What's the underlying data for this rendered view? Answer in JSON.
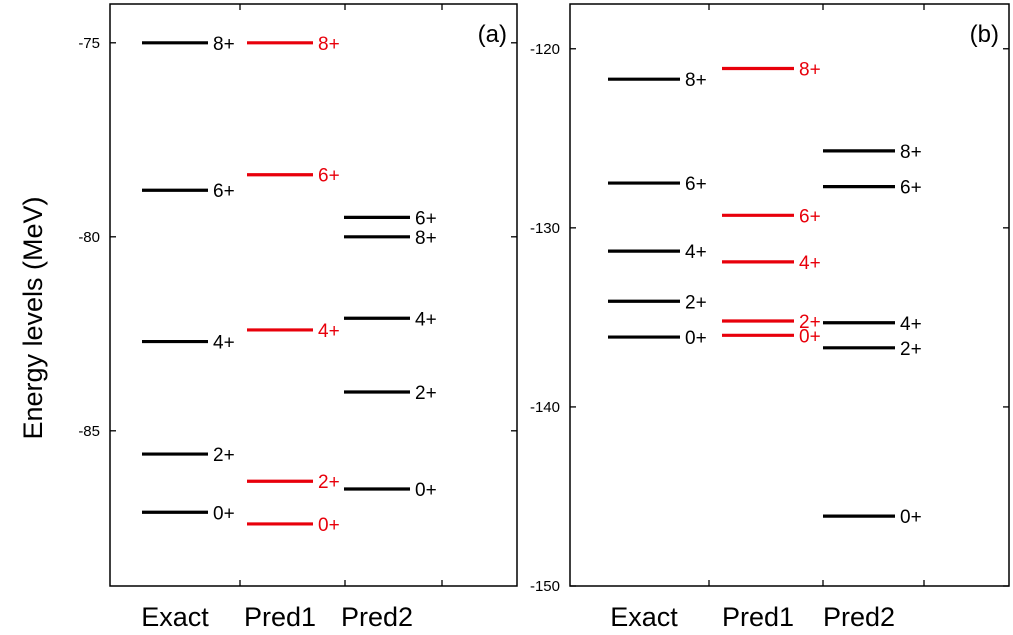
{
  "colors": {
    "exact": "#000000",
    "pred1": "#e8000b",
    "pred2": "#000000",
    "axis": "#000000"
  },
  "chart_data": [
    {
      "type": "scatter",
      "panel_label": "(a)",
      "ylabel": "Energy levels (MeV)",
      "categories": [
        "Exact",
        "Pred1",
        "Pred2"
      ],
      "ylim": [
        -89,
        -74
      ],
      "yticks": [
        -75,
        -80,
        -85
      ],
      "series": [
        {
          "name": "Exact",
          "levels": [
            {
              "label": "8+",
              "value": -75.0
            },
            {
              "label": "6+",
              "value": -78.8
            },
            {
              "label": "4+",
              "value": -82.7
            },
            {
              "label": "2+",
              "value": -85.6
            },
            {
              "label": "0+",
              "value": -87.1
            }
          ]
        },
        {
          "name": "Pred1",
          "levels": [
            {
              "label": "8+",
              "value": -75.0
            },
            {
              "label": "6+",
              "value": -78.4
            },
            {
              "label": "4+",
              "value": -82.4
            },
            {
              "label": "2+",
              "value": -86.3
            },
            {
              "label": "0+",
              "value": -87.4
            }
          ]
        },
        {
          "name": "Pred2",
          "levels": [
            {
              "label": "6+",
              "value": -79.5
            },
            {
              "label": "8+",
              "value": -80.0
            },
            {
              "label": "4+",
              "value": -82.1
            },
            {
              "label": "2+",
              "value": -84.0
            },
            {
              "label": "0+",
              "value": -86.5
            }
          ]
        }
      ]
    },
    {
      "type": "scatter",
      "panel_label": "(b)",
      "ylabel": "",
      "categories": [
        "Exact",
        "Pred1",
        "Pred2"
      ],
      "ylim": [
        -150,
        -117.5
      ],
      "yticks": [
        -120,
        -130,
        -140,
        -150
      ],
      "series": [
        {
          "name": "Exact",
          "levels": [
            {
              "label": "8+",
              "value": -121.7
            },
            {
              "label": "6+",
              "value": -127.5
            },
            {
              "label": "4+",
              "value": -131.3
            },
            {
              "label": "2+",
              "value": -134.1
            },
            {
              "label": "0+",
              "value": -136.1
            }
          ]
        },
        {
          "name": "Pred1",
          "levels": [
            {
              "label": "8+",
              "value": -121.1
            },
            {
              "label": "6+",
              "value": -129.3
            },
            {
              "label": "4+",
              "value": -131.9
            },
            {
              "label": "2+",
              "value": -135.2
            },
            {
              "label": "0+",
              "value": -136.0
            }
          ]
        },
        {
          "name": "Pred2",
          "levels": [
            {
              "label": "8+",
              "value": -125.7
            },
            {
              "label": "6+",
              "value": -127.7
            },
            {
              "label": "4+",
              "value": -135.3
            },
            {
              "label": "2+",
              "value": -136.7
            },
            {
              "label": "0+",
              "value": -146.1
            }
          ]
        }
      ]
    }
  ]
}
